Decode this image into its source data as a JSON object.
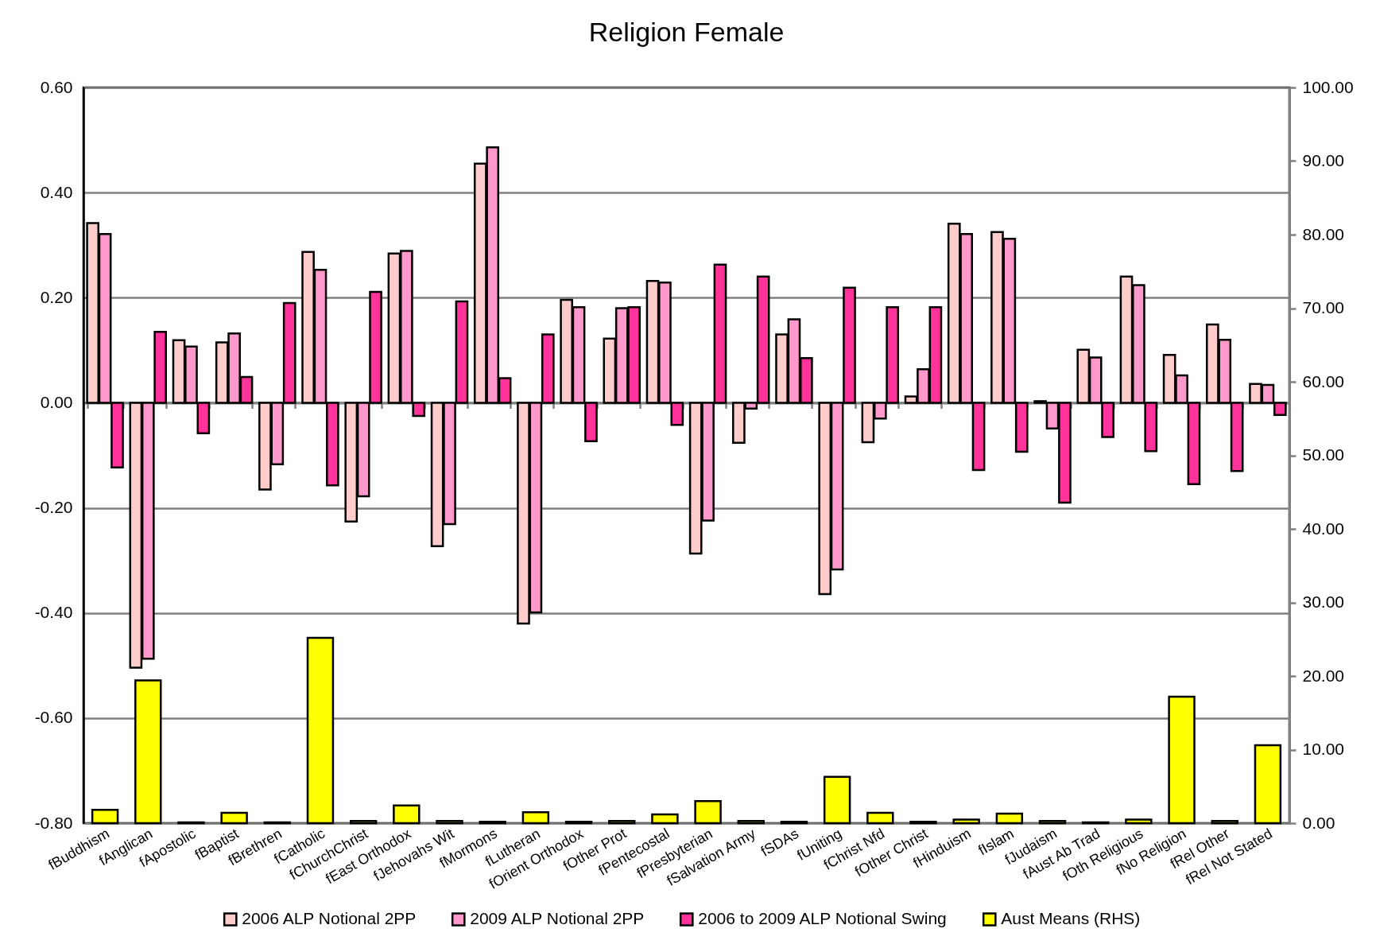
{
  "chart_data": {
    "type": "bar",
    "title": "Religion Female",
    "categories": [
      "fBuddhism",
      "fAnglican",
      "fApostolic",
      "fBaptist",
      "fBrethren",
      "fCatholic",
      "fChurchChrist",
      "fEast Orthodox",
      "fJehovahs Wit",
      "fMormons",
      "fLutheran",
      "fOrient Orthodox",
      "fOther Prot",
      "fPentecostal",
      "fPresbyterian",
      "fSalvation Army",
      "fSDAs",
      "fUniting",
      "fChrist Nfd",
      "fOther Christ",
      "fHinduism",
      "fIslam",
      "fJudaism",
      "fAust Ab Trad",
      "fOth Religious",
      "fNo Religion",
      "fRel Other",
      "fRel Not Stated"
    ],
    "series": [
      {
        "name": "2006 ALP Notional 2PP",
        "color": "#ffcccc",
        "values": [
          0.342,
          -0.504,
          0.119,
          0.115,
          -0.165,
          0.287,
          -0.226,
          0.284,
          -0.273,
          0.455,
          -0.42,
          0.196,
          0.122,
          0.232,
          -0.287,
          -0.076,
          0.13,
          -0.364,
          -0.075,
          0.012,
          0.341,
          0.325,
          0.003,
          0.101,
          0.24,
          0.091,
          0.149,
          0.036
        ]
      },
      {
        "name": "2009 ALP Notional 2PP",
        "color": "#ff99cc",
        "values": [
          0.321,
          -0.487,
          0.107,
          0.132,
          -0.117,
          0.253,
          -0.178,
          0.289,
          -0.231,
          0.486,
          -0.399,
          0.182,
          0.18,
          0.229,
          -0.224,
          -0.011,
          0.159,
          -0.317,
          -0.03,
          0.064,
          0.321,
          0.312,
          -0.049,
          0.086,
          0.224,
          0.052,
          0.12,
          0.034
        ]
      },
      {
        "name": "2006 to 2009 ALP Notional Swing",
        "color": "#ff3399",
        "values": [
          -0.123,
          0.135,
          -0.058,
          0.049,
          0.19,
          -0.157,
          0.211,
          -0.025,
          0.193,
          0.047,
          0.13,
          -0.073,
          0.182,
          -0.042,
          0.263,
          0.24,
          0.085,
          0.219,
          0.182,
          0.182,
          -0.128,
          -0.093,
          -0.19,
          -0.065,
          -0.092,
          -0.155,
          -0.13,
          -0.023
        ]
      },
      {
        "name": "Aust Means (RHS)",
        "color": "#ffff00",
        "axis": "y2",
        "values": [
          1.8,
          19.4,
          0.1,
          1.4,
          0.1,
          25.2,
          0.3,
          2.4,
          0.3,
          0.2,
          1.5,
          0.2,
          0.3,
          1.2,
          3.0,
          0.3,
          0.2,
          6.3,
          1.4,
          0.2,
          0.5,
          1.3,
          0.3,
          0.1,
          0.5,
          17.2,
          0.3,
          10.6
        ]
      }
    ],
    "ylim": [
      -0.8,
      0.6
    ],
    "yticks": [
      {
        "value": -0.8,
        "label": "-0.80"
      },
      {
        "value": -0.6,
        "label": "-0.60"
      },
      {
        "value": -0.4,
        "label": "-0.40"
      },
      {
        "value": -0.2,
        "label": "-0.20"
      },
      {
        "value": 0,
        "label": "0.00"
      },
      {
        "value": 0.2,
        "label": "0.20"
      },
      {
        "value": 0.4,
        "label": "0.40"
      },
      {
        "value": 0.6,
        "label": "0.60"
      }
    ],
    "y2lim": [
      0,
      100
    ],
    "y2ticks": [
      {
        "value": 0,
        "label": "0.00"
      },
      {
        "value": 10,
        "label": "10.00"
      },
      {
        "value": 20,
        "label": "20.00"
      },
      {
        "value": 30,
        "label": "30.00"
      },
      {
        "value": 40,
        "label": "40.00"
      },
      {
        "value": 50,
        "label": "50.00"
      },
      {
        "value": 60,
        "label": "60.00"
      },
      {
        "value": 70,
        "label": "70.00"
      },
      {
        "value": 80,
        "label": "80.00"
      },
      {
        "value": 90,
        "label": "90.00"
      },
      {
        "value": 100,
        "label": "100.00"
      }
    ],
    "grid": "y",
    "legend": "bottom"
  }
}
